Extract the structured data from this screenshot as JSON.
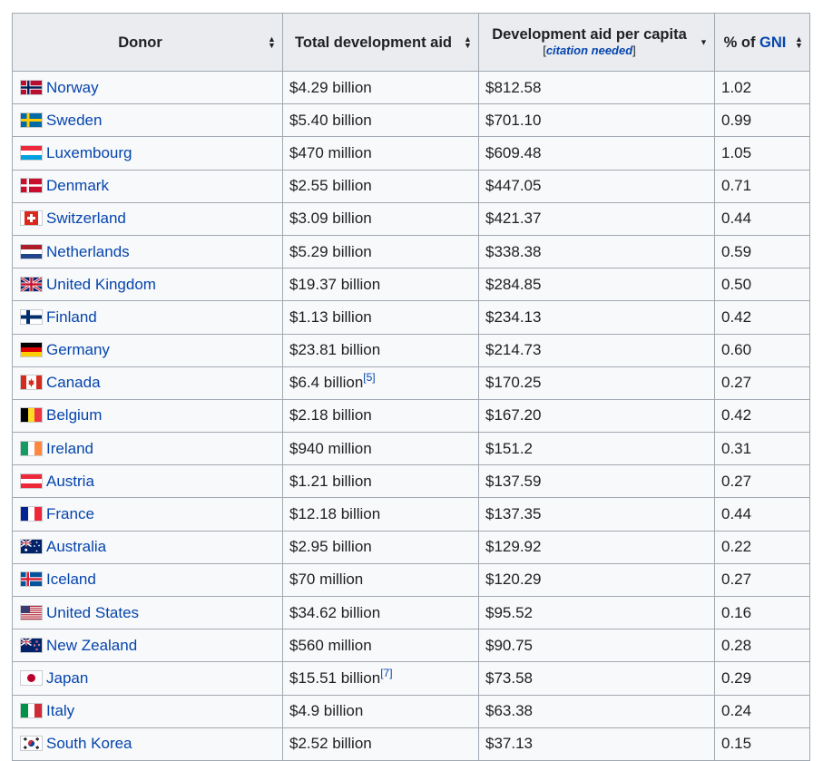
{
  "headers": {
    "donor": "Donor",
    "total": "Total development aid",
    "per_capita": "Development aid per capita",
    "citation": "citation needed",
    "pct_prefix": "% of ",
    "pct_link": "GNI"
  },
  "rows": [
    {
      "country": "Norway",
      "flag": "norway-flag-icon",
      "total": "$4.29 billion",
      "per_capita": "$812.58",
      "pct": "1.02"
    },
    {
      "country": "Sweden",
      "flag": "sweden-flag-icon",
      "total": "$5.40 billion",
      "per_capita": "$701.10",
      "pct": "0.99"
    },
    {
      "country": "Luxembourg",
      "flag": "luxembourg-flag-icon",
      "total": "$470 million",
      "per_capita": "$609.48",
      "pct": "1.05"
    },
    {
      "country": "Denmark",
      "flag": "denmark-flag-icon",
      "total": "$2.55 billion",
      "per_capita": "$447.05",
      "pct": "0.71"
    },
    {
      "country": "Switzerland",
      "flag": "switzerland-flag-icon",
      "total": "$3.09 billion",
      "per_capita": "$421.37",
      "pct": "0.44"
    },
    {
      "country": "Netherlands",
      "flag": "netherlands-flag-icon",
      "total": "$5.29 billion",
      "per_capita": "$338.38",
      "pct": "0.59"
    },
    {
      "country": "United Kingdom",
      "flag": "united-kingdom-flag-icon",
      "total": "$19.37 billion",
      "per_capita": "$284.85",
      "pct": "0.50"
    },
    {
      "country": "Finland",
      "flag": "finland-flag-icon",
      "total": "$1.13 billion",
      "per_capita": "$234.13",
      "pct": "0.42"
    },
    {
      "country": "Germany",
      "flag": "germany-flag-icon",
      "total": "$23.81 billion",
      "per_capita": "$214.73",
      "pct": "0.60"
    },
    {
      "country": "Canada",
      "flag": "canada-flag-icon",
      "total": "$6.4 billion",
      "ref": "[5]",
      "per_capita": "$170.25",
      "pct": "0.27"
    },
    {
      "country": "Belgium",
      "flag": "belgium-flag-icon",
      "total": "$2.18 billion",
      "per_capita": "$167.20",
      "pct": "0.42"
    },
    {
      "country": "Ireland",
      "flag": "ireland-flag-icon",
      "total": "$940 million",
      "per_capita": "$151.2",
      "pct": "0.31"
    },
    {
      "country": "Austria",
      "flag": "austria-flag-icon",
      "total": "$1.21 billion",
      "per_capita": "$137.59",
      "pct": "0.27"
    },
    {
      "country": "France",
      "flag": "france-flag-icon",
      "total": "$12.18 billion",
      "per_capita": "$137.35",
      "pct": "0.44"
    },
    {
      "country": "Australia",
      "flag": "australia-flag-icon",
      "total": "$2.95 billion",
      "per_capita": "$129.92",
      "pct": "0.22"
    },
    {
      "country": "Iceland",
      "flag": "iceland-flag-icon",
      "total": "$70 million",
      "per_capita": "$120.29",
      "pct": "0.27"
    },
    {
      "country": "United States",
      "flag": "united-states-flag-icon",
      "total": "$34.62 billion",
      "per_capita": "$95.52",
      "pct": "0.16"
    },
    {
      "country": "New Zealand",
      "flag": "new-zealand-flag-icon",
      "total": "$560 million",
      "per_capita": "$90.75",
      "pct": "0.28"
    },
    {
      "country": "Japan",
      "flag": "japan-flag-icon",
      "total": "$15.51 billion",
      "ref": "[7]",
      "per_capita": "$73.58",
      "pct": "0.29"
    },
    {
      "country": "Italy",
      "flag": "italy-flag-icon",
      "total": "$4.9 billion",
      "per_capita": "$63.38",
      "pct": "0.24"
    },
    {
      "country": "South Korea",
      "flag": "south-korea-flag-icon",
      "total": "$2.52 billion",
      "per_capita": "$37.13",
      "pct": "0.15"
    }
  ],
  "colors": {
    "link": "#0645ad",
    "header_bg": "#eaecf0",
    "cell_bg": "#f8f9fa",
    "border": "#a2a9b1"
  }
}
